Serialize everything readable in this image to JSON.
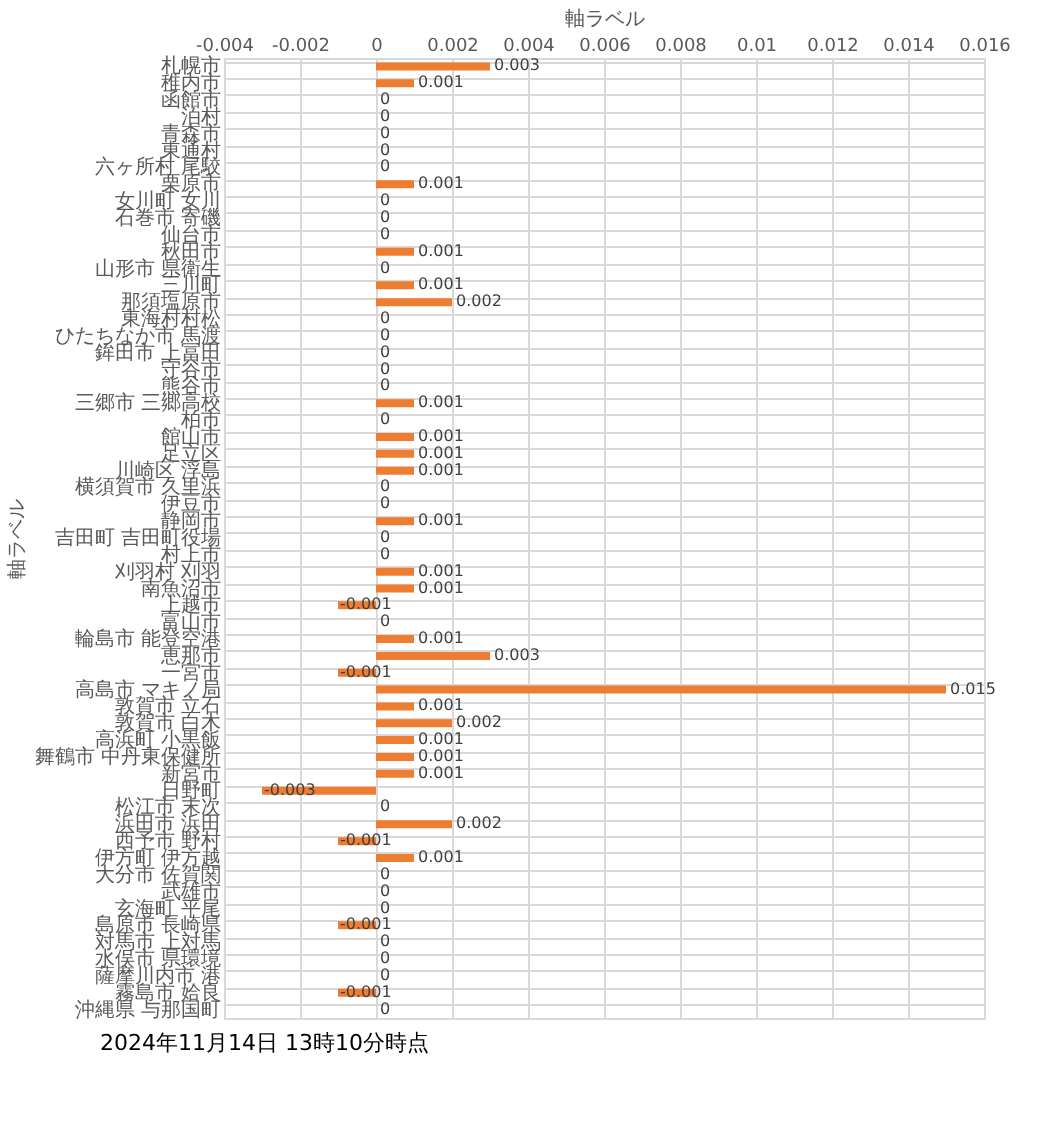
{
  "chart_data": {
    "type": "bar",
    "orientation": "horizontal",
    "xlabel": "軸ラベル",
    "ylabel": "軸ラベル",
    "categories": [
      "札幌市",
      "稚内市",
      "函館市",
      "泊村",
      "青森市",
      "東通村",
      "六ヶ所村 尾駮",
      "栗原市",
      "女川町 女川",
      "石巻市 寄磯",
      "仙台市",
      "秋田市",
      "山形市 県衛生",
      "三川町",
      "那須塩原市",
      "東海村村松",
      "ひたちなか市 馬渡",
      "鉾田市 上冨田",
      "守谷市",
      "熊谷市",
      "三郷市 三郷高校",
      "柏市",
      "館山市",
      "足立区",
      "川崎区 浮島",
      "横須賀市 久里浜",
      "伊豆市",
      "静岡市",
      "吉田町 吉田町役場",
      "村上市",
      "刈羽村 刈羽",
      "南魚沼市",
      "上越市",
      "富山市",
      "輪島市 能登空港",
      "恵那市",
      "一宮市",
      "高島市 マキノ局",
      "敦賀市 立石",
      "敦賀市 白木",
      "高浜町 小黒飯",
      "舞鶴市 中丹東保健所",
      "新宮市",
      "日野町",
      "松江市 末次",
      "浜田市 浜田",
      "西予市 野村",
      "伊方町 伊方越",
      "大分市 佐賀関",
      "武雄市",
      "玄海町 平尾",
      "島原市 長崎県",
      "対馬市 上対馬",
      "水俣市 県環境",
      "薩摩川内市 港",
      "霧島市 姶良",
      "沖縄県 与那国町"
    ],
    "values": [
      0.003,
      0.001,
      0,
      0,
      0,
      0,
      0,
      0.001,
      0,
      0,
      0,
      0.001,
      0,
      0.001,
      0.002,
      0,
      0,
      0,
      0,
      0,
      0.001,
      0,
      0.001,
      0.001,
      0.001,
      0,
      0,
      0.001,
      0,
      0,
      0.001,
      0.001,
      -0.001,
      0,
      0.001,
      0.003,
      -0.001,
      0.015,
      0.001,
      0.002,
      0.001,
      0.001,
      0.001,
      -0.003,
      0,
      0.002,
      -0.001,
      0.001,
      0,
      0,
      0,
      -0.001,
      0,
      0,
      0,
      -0.001,
      0
    ],
    "color": "#ed7d31",
    "xlim": [
      -0.004,
      0.016
    ],
    "xticks": [
      -0.004,
      -0.002,
      0,
      0.002,
      0.004,
      0.006,
      0.008,
      0.01,
      0.012,
      0.014,
      0.016
    ],
    "grid": true,
    "data_labels": true,
    "annotations": [
      "2024年11月14日 13時10分時点"
    ]
  }
}
